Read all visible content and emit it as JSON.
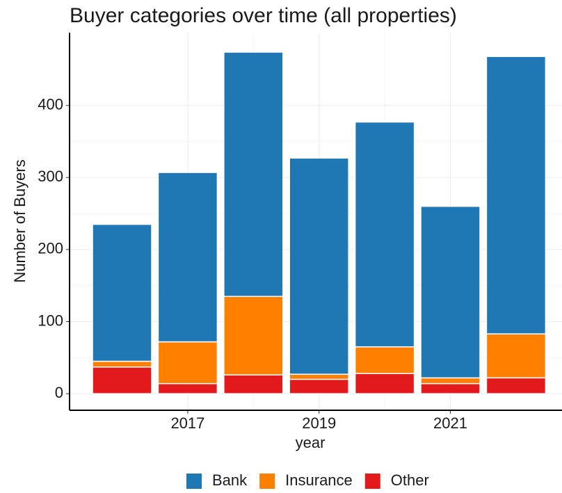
{
  "chart_data": {
    "type": "stacked_bar",
    "title": "Buyer categories over time (all properties)",
    "x_label": "year",
    "y_label": "Number of Buyers",
    "x": [
      2016,
      2017,
      2018,
      2019,
      2020,
      2021,
      2022
    ],
    "series": [
      {
        "name": "Bank",
        "color": "#1f78b4",
        "values": [
          190,
          235,
          339,
          300,
          312,
          238,
          385
        ]
      },
      {
        "name": "Insurance",
        "color": "#ff7f00",
        "values": [
          8,
          58,
          109,
          7,
          37,
          8,
          61
        ]
      },
      {
        "name": "Other",
        "color": "#e31a1c",
        "values": [
          37,
          14,
          26,
          20,
          28,
          14,
          22
        ]
      }
    ],
    "xlim": [
      2015.2,
      2022.7
    ],
    "xticks": [
      2017,
      2019,
      2021
    ],
    "ylim": [
      -23,
      501
    ],
    "yticks": [
      0,
      100,
      200,
      300,
      400
    ],
    "grid": true,
    "legend": "bottom"
  }
}
